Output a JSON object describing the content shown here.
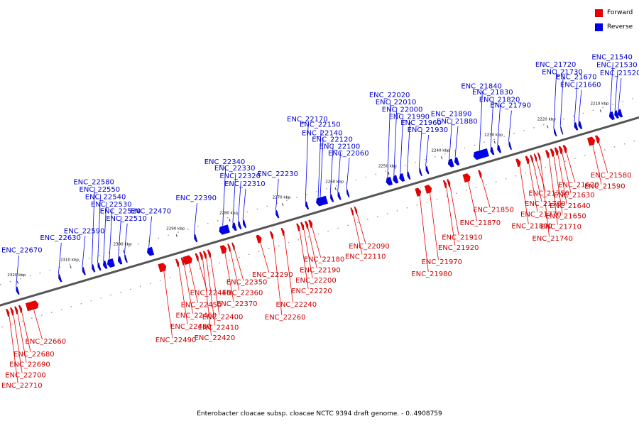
{
  "colors": {
    "forward": "#ee0000",
    "reverse": "#0000ee",
    "forward_label": "#cc0000",
    "reverse_label": "#0000cc",
    "backbone": "#555555"
  },
  "legend": {
    "items": [
      {
        "label": "Forward",
        "color": "#ee0000"
      },
      {
        "label": "Reverse",
        "color": "#0000ee"
      }
    ]
  },
  "caption": "Enterobacter cloacae subsp. cloacae NCTC 9394 draft genome. - 0..4908759",
  "chart_data": {
    "type": "linear genome map",
    "position_unit": "kbp",
    "visible_range_kbp": [
      2206,
      2332
    ],
    "ticks_kbp": [
      2200,
      2210,
      2220,
      2230,
      2240,
      2250,
      2260,
      2270,
      2280,
      2290,
      2300,
      2310,
      2320
    ],
    "tick_labels": [
      "2200 kbp",
      "2210 kbp",
      "2220 kbp",
      "2230 kbp",
      "2240 kbp",
      "2250 kbp",
      "2260 kbp",
      "2270 kbp",
      "2280 kbp",
      "2290 kbp",
      "2300 kbp",
      "2310 kbp",
      "2320 kbp"
    ],
    "genes": [
      {
        "id": "ENC_21520",
        "strand": "reverse",
        "pos_kbp": 2206.5,
        "len_kbp": 0.7
      },
      {
        "id": "ENC_21530",
        "strand": "reverse",
        "pos_kbp": 2207.2,
        "len_kbp": 0.6
      },
      {
        "id": "ENC_21540",
        "strand": "reverse",
        "pos_kbp": 2208.0,
        "len_kbp": 0.8
      },
      {
        "id": "ENC_21580",
        "strand": "forward",
        "pos_kbp": 2211.6,
        "len_kbp": 0.6
      },
      {
        "id": "ENC_21590",
        "strand": "forward",
        "pos_kbp": 2212.5,
        "len_kbp": 1.2
      },
      {
        "id": "ENC_21620",
        "strand": "forward",
        "pos_kbp": 2217.8,
        "len_kbp": 0.5
      },
      {
        "id": "ENC_21630",
        "strand": "forward",
        "pos_kbp": 2218.6,
        "len_kbp": 0.5
      },
      {
        "id": "ENC_21640",
        "strand": "forward",
        "pos_kbp": 2219.4,
        "len_kbp": 0.5
      },
      {
        "id": "ENC_21650",
        "strand": "forward",
        "pos_kbp": 2220.2,
        "len_kbp": 0.5
      },
      {
        "id": "ENC_21660",
        "strand": "reverse",
        "pos_kbp": 2214.1,
        "len_kbp": 0.5
      },
      {
        "id": "ENC_21670",
        "strand": "reverse",
        "pos_kbp": 2214.9,
        "len_kbp": 0.5
      },
      {
        "id": "ENC_21710",
        "strand": "forward",
        "pos_kbp": 2221.1,
        "len_kbp": 0.5
      },
      {
        "id": "ENC_21720",
        "strand": "reverse",
        "pos_kbp": 2218.9,
        "len_kbp": 0.3
      },
      {
        "id": "ENC_21730",
        "strand": "reverse",
        "pos_kbp": 2217.7,
        "len_kbp": 0.2
      },
      {
        "id": "ENC_21740",
        "strand": "forward",
        "pos_kbp": 2222.8,
        "len_kbp": 0.3
      },
      {
        "id": "ENC_21750",
        "strand": "forward",
        "pos_kbp": 2223.5,
        "len_kbp": 0.3
      },
      {
        "id": "ENC_21760",
        "strand": "forward",
        "pos_kbp": 2224.2,
        "len_kbp": 0.3
      },
      {
        "id": "ENC_21770",
        "strand": "forward",
        "pos_kbp": 2224.9,
        "len_kbp": 0.5
      },
      {
        "id": "ENC_21790",
        "strand": "reverse",
        "pos_kbp": 2227.4,
        "len_kbp": 0.3
      },
      {
        "id": "ENC_21800",
        "strand": "forward",
        "pos_kbp": 2226.5,
        "len_kbp": 0.7
      },
      {
        "id": "ENC_21820",
        "strand": "reverse",
        "pos_kbp": 2229.4,
        "len_kbp": 0.5
      },
      {
        "id": "ENC_21830",
        "strand": "reverse",
        "pos_kbp": 2230.7,
        "len_kbp": 0.5
      },
      {
        "id": "ENC_21840",
        "strand": "reverse",
        "pos_kbp": 2231.7,
        "len_kbp": 2.7
      },
      {
        "id": "ENC_21850",
        "strand": "forward",
        "pos_kbp": 2233.9,
        "len_kbp": 0.4
      },
      {
        "id": "ENC_21870",
        "strand": "forward",
        "pos_kbp": 2236.0,
        "len_kbp": 1.2
      },
      {
        "id": "ENC_21880",
        "strand": "reverse",
        "pos_kbp": 2237.3,
        "len_kbp": 0.7
      },
      {
        "id": "ENC_21890",
        "strand": "reverse",
        "pos_kbp": 2238.3,
        "len_kbp": 0.9
      },
      {
        "id": "ENC_21910",
        "strand": "forward",
        "pos_kbp": 2239.8,
        "len_kbp": 0.4
      },
      {
        "id": "ENC_21920",
        "strand": "forward",
        "pos_kbp": 2240.5,
        "len_kbp": 0.4
      },
      {
        "id": "ENC_21930",
        "strand": "reverse",
        "pos_kbp": 2243.0,
        "len_kbp": 0.4
      },
      {
        "id": "ENC_21960",
        "strand": "reverse",
        "pos_kbp": 2244.3,
        "len_kbp": 0.3
      },
      {
        "id": "ENC_21970",
        "strand": "forward",
        "pos_kbp": 2243.3,
        "len_kbp": 1.1
      },
      {
        "id": "ENC_21980",
        "strand": "forward",
        "pos_kbp": 2245.3,
        "len_kbp": 0.9
      },
      {
        "id": "ENC_21990",
        "strand": "reverse",
        "pos_kbp": 2246.5,
        "len_kbp": 0.4
      },
      {
        "id": "ENC_22000",
        "strand": "reverse",
        "pos_kbp": 2247.6,
        "len_kbp": 0.8
      },
      {
        "id": "ENC_22010",
        "strand": "reverse",
        "pos_kbp": 2248.8,
        "len_kbp": 0.8
      },
      {
        "id": "ENC_22020",
        "strand": "reverse",
        "pos_kbp": 2249.9,
        "len_kbp": 1.0
      },
      {
        "id": "ENC_22060",
        "strand": "reverse",
        "pos_kbp": 2258.0,
        "len_kbp": 0.3
      },
      {
        "id": "ENC_22090",
        "strand": "forward",
        "pos_kbp": 2257.4,
        "len_kbp": 0.3
      },
      {
        "id": "ENC_22100",
        "strand": "reverse",
        "pos_kbp": 2259.6,
        "len_kbp": 0.4
      },
      {
        "id": "ENC_22110",
        "strand": "forward",
        "pos_kbp": 2258.1,
        "len_kbp": 0.3
      },
      {
        "id": "ENC_22120",
        "strand": "reverse",
        "pos_kbp": 2261.0,
        "len_kbp": 0.4
      },
      {
        "id": "ENC_22140",
        "strand": "reverse",
        "pos_kbp": 2262.1,
        "len_kbp": 2.0
      },
      {
        "id": "ENC_22150",
        "strand": "reverse",
        "pos_kbp": 2263.3,
        "len_kbp": 0.4
      },
      {
        "id": "ENC_22170",
        "strand": "reverse",
        "pos_kbp": 2265.7,
        "len_kbp": 0.4
      },
      {
        "id": "ENC_22180",
        "strand": "forward",
        "pos_kbp": 2265.8,
        "len_kbp": 0.5
      },
      {
        "id": "ENC_22190",
        "strand": "forward",
        "pos_kbp": 2266.6,
        "len_kbp": 0.4
      },
      {
        "id": "ENC_22200",
        "strand": "forward",
        "pos_kbp": 2267.4,
        "len_kbp": 0.4
      },
      {
        "id": "ENC_22220",
        "strand": "forward",
        "pos_kbp": 2268.2,
        "len_kbp": 0.4
      },
      {
        "id": "ENC_22230",
        "strand": "reverse",
        "pos_kbp": 2271.3,
        "len_kbp": 0.4
      },
      {
        "id": "ENC_22240",
        "strand": "forward",
        "pos_kbp": 2271.1,
        "len_kbp": 0.4
      },
      {
        "id": "ENC_22260",
        "strand": "forward",
        "pos_kbp": 2273.2,
        "len_kbp": 0.4
      },
      {
        "id": "ENC_22290",
        "strand": "forward",
        "pos_kbp": 2275.4,
        "len_kbp": 0.8
      },
      {
        "id": "ENC_22310",
        "strand": "reverse",
        "pos_kbp": 2277.5,
        "len_kbp": 0.4
      },
      {
        "id": "ENC_22320",
        "strand": "reverse",
        "pos_kbp": 2278.4,
        "len_kbp": 0.4
      },
      {
        "id": "ENC_22330",
        "strand": "reverse",
        "pos_kbp": 2279.3,
        "len_kbp": 0.6
      },
      {
        "id": "ENC_22340",
        "strand": "reverse",
        "pos_kbp": 2280.6,
        "len_kbp": 1.8
      },
      {
        "id": "ENC_22350",
        "strand": "forward",
        "pos_kbp": 2280.5,
        "len_kbp": 0.3
      },
      {
        "id": "ENC_22360",
        "strand": "forward",
        "pos_kbp": 2281.3,
        "len_kbp": 0.3
      },
      {
        "id": "ENC_22370",
        "strand": "forward",
        "pos_kbp": 2282.0,
        "len_kbp": 1.0
      },
      {
        "id": "ENC_22390",
        "strand": "reverse",
        "pos_kbp": 2286.7,
        "len_kbp": 0.4
      },
      {
        "id": "ENC_22400",
        "strand": "forward",
        "pos_kbp": 2285.0,
        "len_kbp": 0.4
      },
      {
        "id": "ENC_22410",
        "strand": "forward",
        "pos_kbp": 2285.8,
        "len_kbp": 0.4
      },
      {
        "id": "ENC_22420",
        "strand": "forward",
        "pos_kbp": 2286.5,
        "len_kbp": 0.4
      },
      {
        "id": "ENC_22440",
        "strand": "forward",
        "pos_kbp": 2287.3,
        "len_kbp": 0.4
      },
      {
        "id": "ENC_22450",
        "strand": "forward",
        "pos_kbp": 2288.5,
        "len_kbp": 1.5
      },
      {
        "id": "ENC_22460",
        "strand": "forward",
        "pos_kbp": 2290.0,
        "len_kbp": 0.4
      },
      {
        "id": "ENC_22470",
        "strand": "reverse",
        "pos_kbp": 2294.9,
        "len_kbp": 1.1
      },
      {
        "id": "ENC_22480",
        "strand": "forward",
        "pos_kbp": 2291.0,
        "len_kbp": 0.4
      },
      {
        "id": "ENC_22490",
        "strand": "forward",
        "pos_kbp": 2293.4,
        "len_kbp": 1.3
      },
      {
        "id": "ENC_22510",
        "strand": "reverse",
        "pos_kbp": 2299.9,
        "len_kbp": 0.3
      },
      {
        "id": "ENC_22520",
        "strand": "reverse",
        "pos_kbp": 2300.9,
        "len_kbp": 0.6
      },
      {
        "id": "ENC_22530",
        "strand": "reverse",
        "pos_kbp": 2302.3,
        "len_kbp": 1.2
      },
      {
        "id": "ENC_22540",
        "strand": "reverse",
        "pos_kbp": 2303.7,
        "len_kbp": 0.6
      },
      {
        "id": "ENC_22550",
        "strand": "reverse",
        "pos_kbp": 2304.9,
        "len_kbp": 0.4
      },
      {
        "id": "ENC_22580",
        "strand": "reverse",
        "pos_kbp": 2306.0,
        "len_kbp": 0.4
      },
      {
        "id": "ENC_22590",
        "strand": "reverse",
        "pos_kbp": 2307.8,
        "len_kbp": 0.4
      },
      {
        "id": "ENC_22630",
        "strand": "reverse",
        "pos_kbp": 2312.3,
        "len_kbp": 0.4
      },
      {
        "id": "ENC_22660",
        "strand": "forward",
        "pos_kbp": 2317.5,
        "len_kbp": 2.2
      },
      {
        "id": "ENC_22670",
        "strand": "reverse",
        "pos_kbp": 2320.3,
        "len_kbp": 0.4
      },
      {
        "id": "ENC_22680",
        "strand": "forward",
        "pos_kbp": 2320.6,
        "len_kbp": 0.4
      },
      {
        "id": "ENC_22690",
        "strand": "forward",
        "pos_kbp": 2321.4,
        "len_kbp": 0.4
      },
      {
        "id": "ENC_22700",
        "strand": "forward",
        "pos_kbp": 2322.2,
        "len_kbp": 0.4
      },
      {
        "id": "ENC_22710",
        "strand": "forward",
        "pos_kbp": 2323.0,
        "len_kbp": 0.4
      }
    ]
  }
}
